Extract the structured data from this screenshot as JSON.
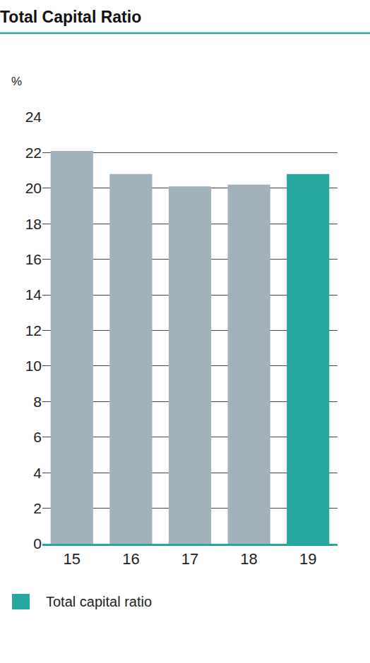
{
  "chart_data": {
    "type": "bar",
    "title": "Total Capital Ratio",
    "y_label": "%",
    "categories": [
      "15",
      "16",
      "17",
      "18",
      "19"
    ],
    "series": [
      {
        "name": "Total capital ratio",
        "color": "#26a69f",
        "values": [
          22.1,
          20.8,
          20.1,
          20.2,
          20.8
        ],
        "colors": [
          "#a1b2bd",
          "#a1b2bd",
          "#a1b2bd",
          "#a1b2bd",
          "#26a69f"
        ]
      }
    ],
    "ylim": [
      0,
      24
    ],
    "yticks": [
      0,
      2,
      4,
      6,
      8,
      10,
      12,
      14,
      16,
      18,
      20,
      22,
      24
    ],
    "grid": true,
    "legend": "bottom left"
  }
}
